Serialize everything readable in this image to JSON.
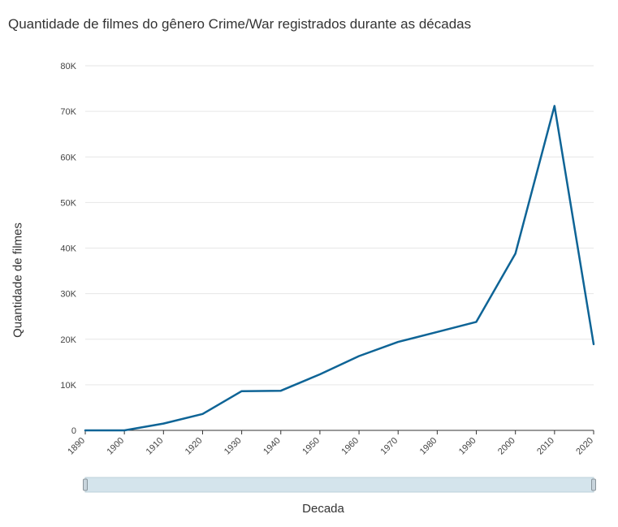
{
  "chart_data": {
    "type": "line",
    "title": "Quantidade de filmes do gênero Crime/War registrados durante as décadas",
    "xlabel": "Decada",
    "ylabel": "Quantidade de filmes",
    "x": [
      1890,
      1900,
      1910,
      1920,
      1930,
      1940,
      1950,
      1960,
      1970,
      1980,
      1990,
      2000,
      2010,
      2020
    ],
    "series": [
      {
        "values": [
          0,
          0,
          1500,
          3600,
          8600,
          8700,
          12300,
          16300,
          19400,
          21600,
          23800,
          38800,
          71200,
          18900
        ]
      }
    ],
    "xlim": [
      1890,
      2020
    ],
    "ylim": [
      0,
      80000
    ],
    "ytick_values": [
      0,
      10000,
      20000,
      30000,
      40000,
      50000,
      60000,
      70000,
      80000
    ],
    "ytick_labels": [
      "0",
      "10K",
      "20K",
      "30K",
      "40K",
      "50K",
      "60K",
      "70K",
      "80K"
    ],
    "xtick_labels": [
      "1890",
      "1900",
      "1910",
      "1920",
      "1930",
      "1940",
      "1950",
      "1960",
      "1970",
      "1980",
      "1990",
      "2000",
      "2010",
      "2020"
    ],
    "grid": true,
    "line_color": "#0e6496",
    "range_slider": {
      "start": 1890,
      "end": 2020,
      "fill_color": "#d4e4ec",
      "handle_color": "#c8d4dc"
    }
  }
}
